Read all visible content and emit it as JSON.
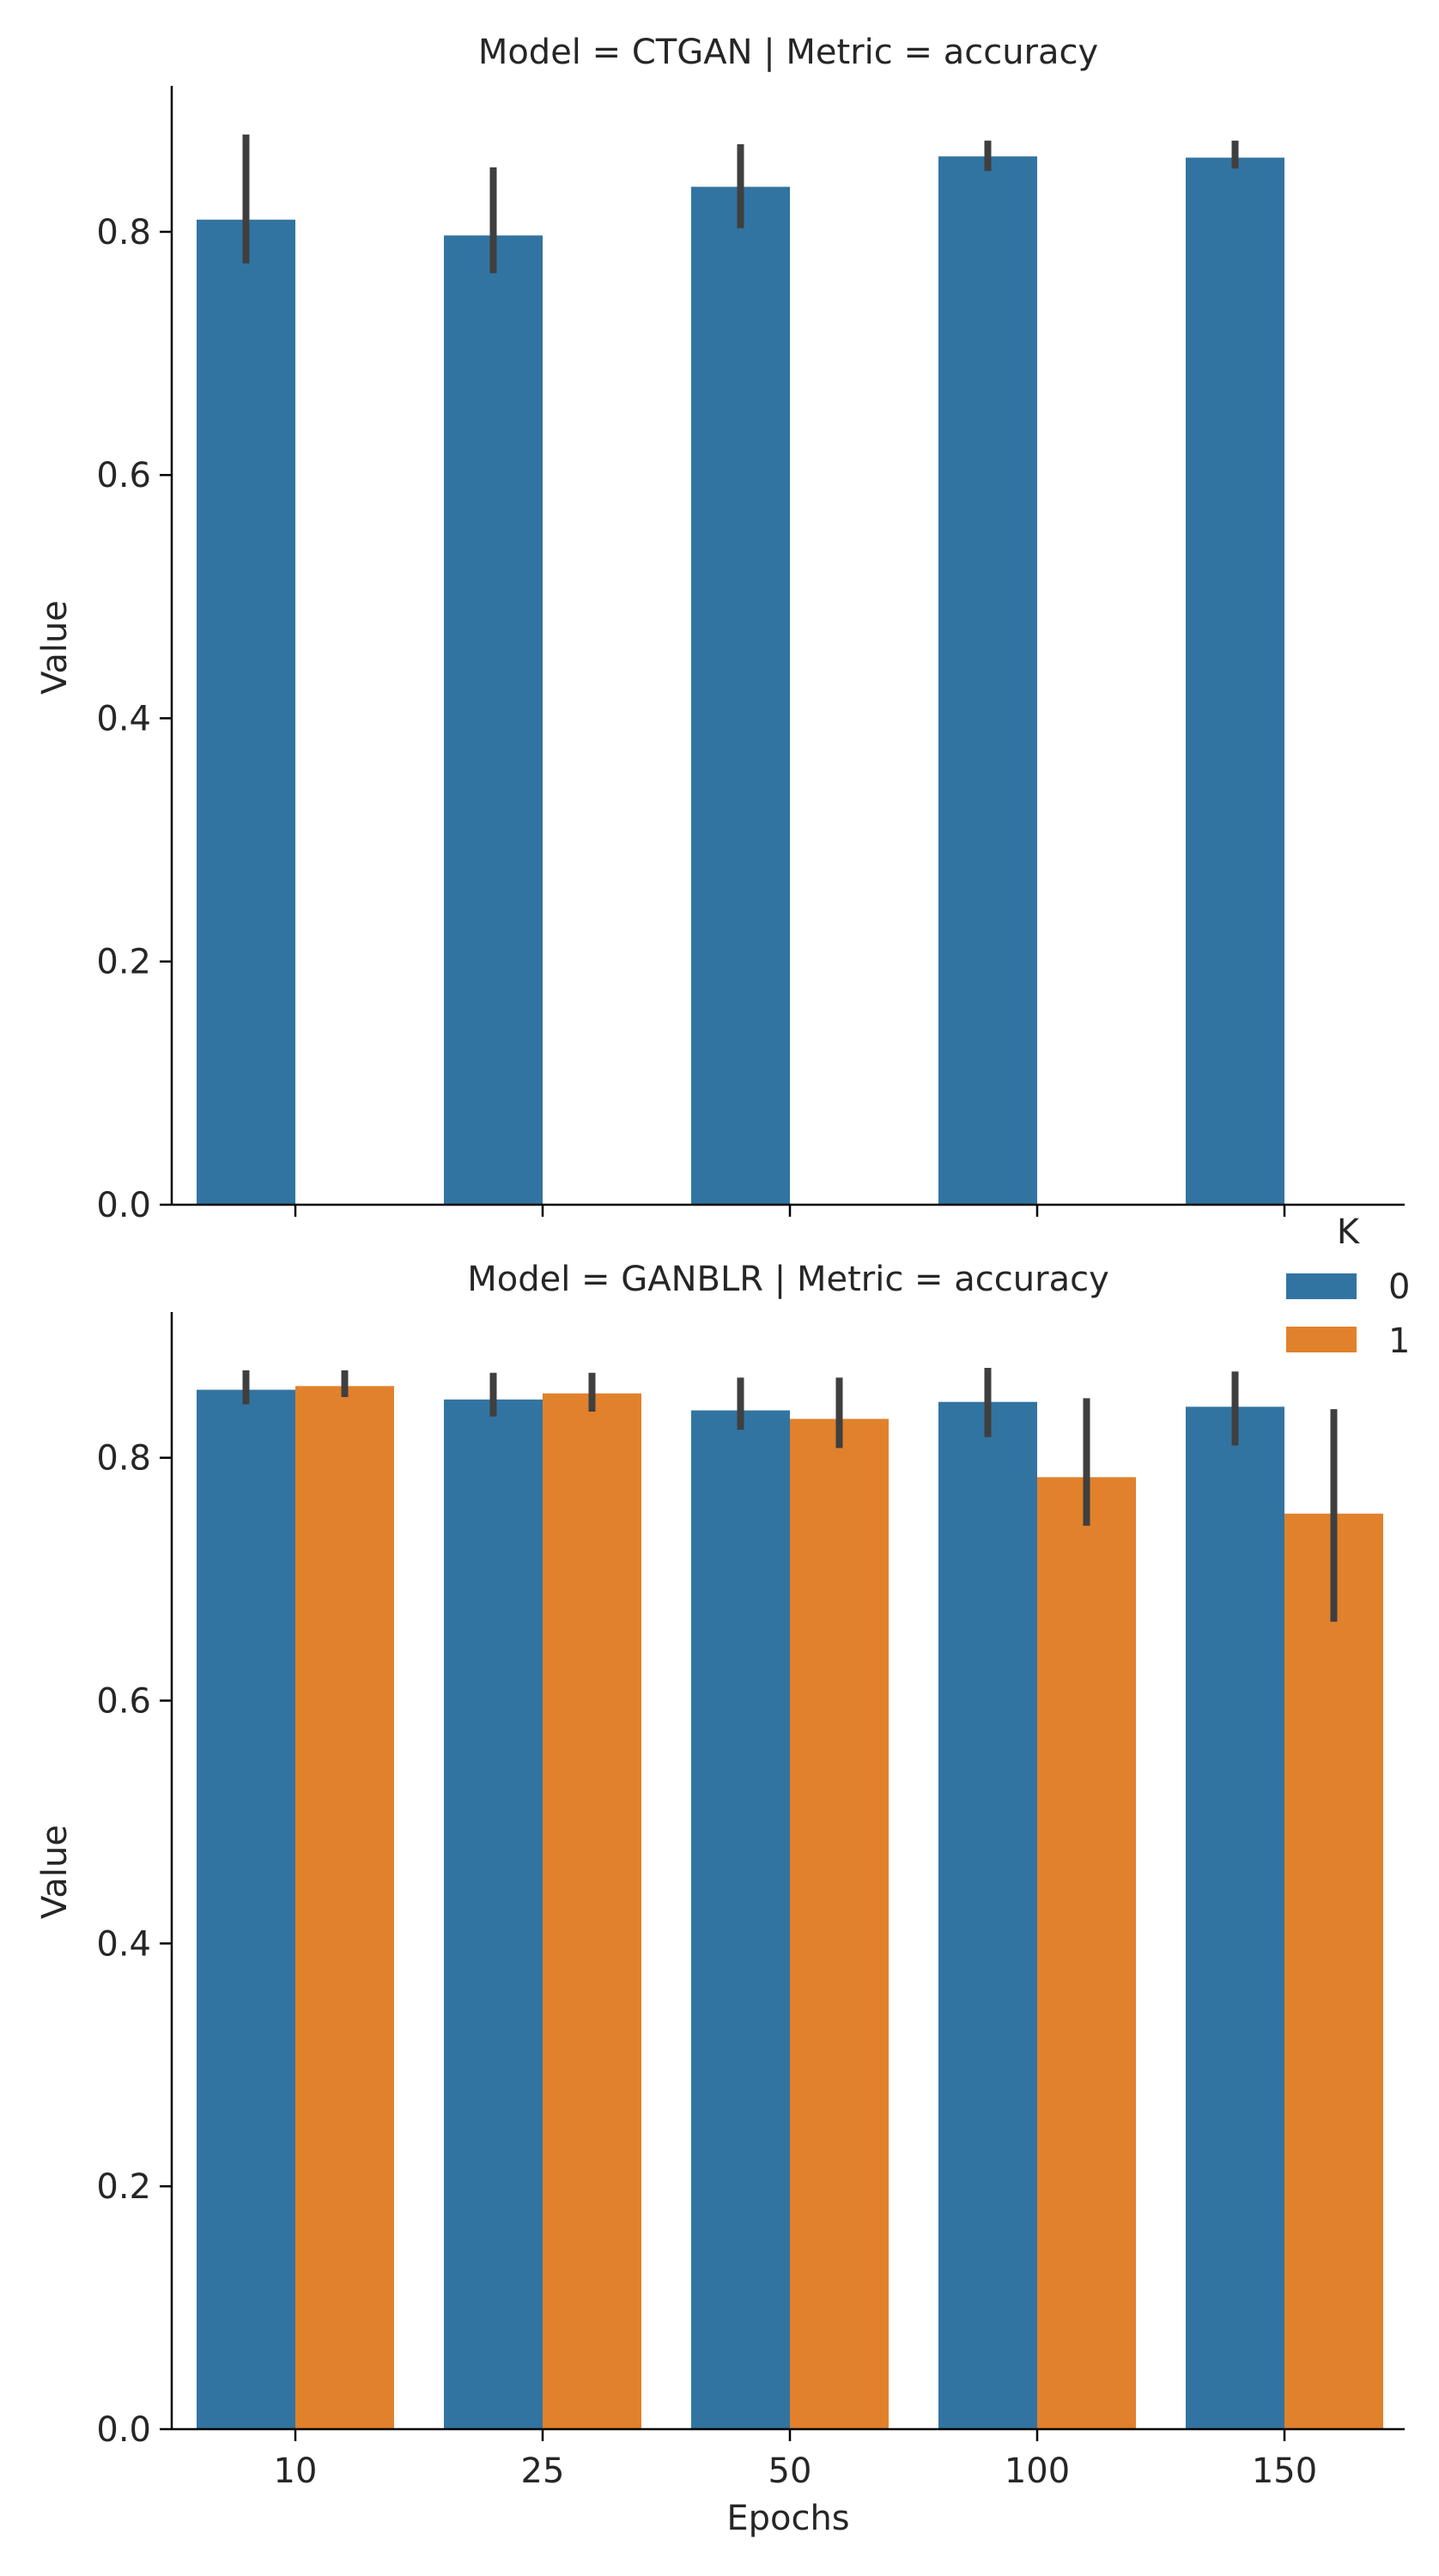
{
  "colors": {
    "k0": "#3274a1",
    "k1": "#e1812c",
    "errbar": "#3f3f3f",
    "axis": "#000000"
  },
  "chart_data": [
    {
      "type": "bar",
      "title": "Model = CTGAN | Metric = accuracy",
      "xlabel": "",
      "ylabel": "Value",
      "categories": [
        "10",
        "25",
        "50",
        "100",
        "150"
      ],
      "ylim": [
        0,
        0.92
      ],
      "yticks": [
        "0.0",
        "0.2",
        "0.4",
        "0.6",
        "0.8"
      ],
      "series": [
        {
          "name": "0",
          "values": [
            0.81,
            0.797,
            0.837,
            0.862,
            0.861
          ],
          "err_low": [
            0.774,
            0.766,
            0.803,
            0.85,
            0.852
          ],
          "err_high": [
            0.88,
            0.853,
            0.872,
            0.875,
            0.875
          ]
        },
        {
          "name": "1",
          "values": [
            null,
            null,
            null,
            null,
            null
          ],
          "err_low": [
            null,
            null,
            null,
            null,
            null
          ],
          "err_high": [
            null,
            null,
            null,
            null,
            null
          ]
        }
      ]
    },
    {
      "type": "bar",
      "title": "Model = GANBLR | Metric = accuracy",
      "xlabel": "Epochs",
      "ylabel": "Value",
      "categories": [
        "10",
        "25",
        "50",
        "100",
        "150"
      ],
      "ylim": [
        0,
        0.92
      ],
      "yticks": [
        "0.0",
        "0.2",
        "0.4",
        "0.6",
        "0.8"
      ],
      "series": [
        {
          "name": "0",
          "values": [
            0.856,
            0.848,
            0.839,
            0.846,
            0.842
          ],
          "err_low": [
            0.844,
            0.834,
            0.823,
            0.817,
            0.81
          ],
          "err_high": [
            0.872,
            0.87,
            0.866,
            0.874,
            0.871
          ]
        },
        {
          "name": "1",
          "values": [
            0.859,
            0.853,
            0.832,
            0.784,
            0.754
          ],
          "err_low": [
            0.85,
            0.838,
            0.808,
            0.744,
            0.665
          ],
          "err_high": [
            0.872,
            0.87,
            0.866,
            0.849,
            0.84
          ]
        }
      ]
    }
  ],
  "legend": {
    "title": "K",
    "placement": "right, between panels",
    "entries": [
      "0",
      "1"
    ]
  }
}
